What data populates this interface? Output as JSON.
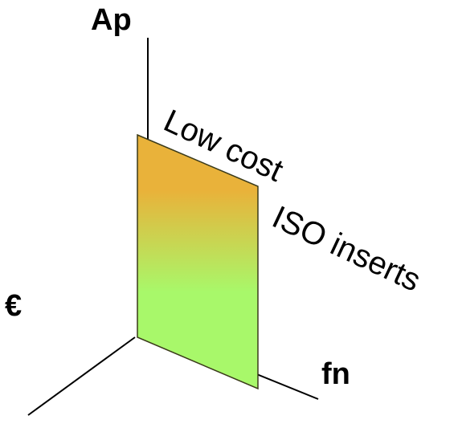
{
  "axes": {
    "vertical_label": "Ap",
    "right_label": "fn",
    "left_label": "€"
  },
  "plane": {
    "label_line1": "Low cost",
    "label_line2": "ISO inserts",
    "gradient_top_color": "#E9B23A",
    "gradient_bottom_color": "#A8F86A",
    "edge_color": "#3A3A1A"
  },
  "colors": {
    "axis": "#000000"
  }
}
